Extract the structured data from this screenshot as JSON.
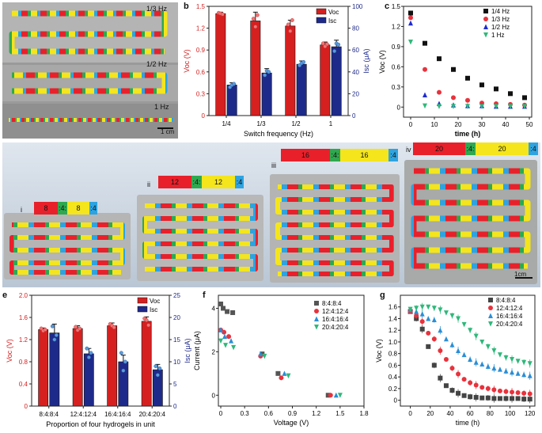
{
  "figure": {
    "panel_labels": {
      "a": "a",
      "b": "b",
      "c": "c",
      "d": "d",
      "e": "e",
      "f": "f",
      "g": "g"
    },
    "panel_a": {
      "labels": [
        "1/3 Hz",
        "1/2 Hz",
        "1 Hz"
      ],
      "scale_bar": "1 cm"
    },
    "panel_d": {
      "items": [
        {
          "roman": "i",
          "ratio": [
            "8",
            ":4:",
            "8",
            ":4"
          ]
        },
        {
          "roman": "ii",
          "ratio": [
            "12",
            ":4:",
            "12",
            ":4"
          ]
        },
        {
          "roman": "iii",
          "ratio": [
            "16",
            ":4:",
            "16",
            ":4"
          ]
        },
        {
          "roman": "iv",
          "ratio": [
            "20",
            ":4:",
            "20",
            ":4"
          ]
        }
      ],
      "scale_bar": "1cm"
    },
    "colors": {
      "red": "#e8202a",
      "green": "#2fa84f",
      "yellow": "#f4e51c",
      "blue": "#2ea3e0",
      "navy": "#1e2a8a",
      "bar_red": "#d62020"
    }
  },
  "chart_data": [
    {
      "id": "b",
      "type": "bar",
      "categories": [
        "1/4",
        "1/3",
        "1/2",
        "1"
      ],
      "series": [
        {
          "name": "Voc",
          "axis": "left",
          "values": [
            1.4,
            1.3,
            1.23,
            0.97
          ],
          "err": [
            0.02,
            0.12,
            0.08,
            0.04
          ],
          "points": [
            [
              1.41,
              1.4,
              1.39
            ],
            [
              1.33,
              1.22,
              1.38
            ],
            [
              1.25,
              1.16,
              1.31
            ],
            [
              0.99,
              0.95,
              0.98
            ]
          ]
        },
        {
          "name": "Isc",
          "axis": "right",
          "values": [
            28,
            39,
            47,
            63
          ],
          "err": [
            2,
            4,
            3,
            6
          ],
          "points": [
            [
              26,
              28,
              29
            ],
            [
              37,
              41,
              40
            ],
            [
              46,
              48,
              49
            ],
            [
              59,
              66,
              65
            ]
          ]
        }
      ],
      "xlabel": "Switch frequency (Hz)",
      "ylabel": "Voc (V)",
      "ylabel_right": "Isc (μA)",
      "ylim": [
        0,
        1.5
      ],
      "ylim_right": [
        0,
        100
      ],
      "yticks": [
        0,
        0.3,
        0.6,
        0.9,
        1.2,
        1.5
      ],
      "yticks_right": [
        0,
        20,
        40,
        60,
        80,
        100
      ],
      "legend": [
        "Voc",
        "Isc"
      ]
    },
    {
      "id": "c",
      "type": "scatter",
      "xlabel": "time (h)",
      "ylabel": "Voc (V)",
      "xlim": [
        -3,
        51
      ],
      "ylim": [
        -0.15,
        1.5
      ],
      "xticks": [
        0,
        10,
        20,
        30,
        40,
        50
      ],
      "yticks": [
        0,
        0.3,
        0.6,
        0.9,
        1.2,
        1.5
      ],
      "series": [
        {
          "name": "1/4 Hz",
          "marker": "square",
          "color": "#111111",
          "x": [
            0,
            6,
            12,
            18,
            24,
            30,
            36,
            42,
            48
          ],
          "y": [
            1.4,
            0.95,
            0.72,
            0.56,
            0.43,
            0.33,
            0.27,
            0.2,
            0.14
          ]
        },
        {
          "name": "1/3 Hz",
          "marker": "circle",
          "color": "#e8323c",
          "x": [
            0,
            6,
            12,
            18,
            24,
            30,
            36,
            42,
            48
          ],
          "y": [
            1.33,
            0.56,
            0.22,
            0.14,
            0.1,
            0.06,
            0.05,
            0.04,
            0.03
          ]
        },
        {
          "name": "1/2 Hz",
          "marker": "triangle-up",
          "color": "#1f2bd0",
          "x": [
            0,
            6,
            12,
            18,
            24,
            30,
            36,
            42,
            48
          ],
          "y": [
            1.25,
            0.18,
            0.05,
            0.03,
            0.02,
            0.02,
            0.01,
            0.01,
            0.01
          ]
        },
        {
          "name": "1 Hz",
          "marker": "triangle-down",
          "color": "#2fb87a",
          "x": [
            0,
            6,
            12,
            18,
            24,
            30,
            36,
            42,
            48
          ],
          "y": [
            0.97,
            0.02,
            0.01,
            0.01,
            0.01,
            0.01,
            0.01,
            0.01,
            0.01
          ]
        }
      ],
      "legend": [
        "1/4 Hz",
        "1/3 Hz",
        "1/2 Hz",
        "1 Hz"
      ]
    },
    {
      "id": "e",
      "type": "bar",
      "categories": [
        "8:4:8:4",
        "12:4:12:4",
        "16:4:16:4",
        "20:4:20:4"
      ],
      "series": [
        {
          "name": "Voc",
          "axis": "left",
          "values": [
            1.38,
            1.4,
            1.45,
            1.53
          ],
          "err": [
            0.03,
            0.05,
            0.05,
            0.08
          ],
          "points": [
            [
              1.4,
              1.36,
              1.38
            ],
            [
              1.43,
              1.37,
              1.4
            ],
            [
              1.48,
              1.45,
              1.42
            ],
            [
              1.58,
              1.55,
              1.46
            ]
          ]
        },
        {
          "name": "Isc",
          "axis": "right",
          "values": [
            16.5,
            11.8,
            10.0,
            8.2
          ],
          "err": [
            2.0,
            1.2,
            1.5,
            1.2
          ],
          "points": [
            [
              18,
              15,
              16
            ],
            [
              13,
              11,
              12
            ],
            [
              12,
              8,
              10
            ],
            [
              9,
              7,
              8.5
            ]
          ]
        }
      ],
      "xlabel": "Proportion of four hydrogels in unit",
      "ylabel": "Voc (V)",
      "ylabel_right": "Isc (μA)",
      "ylim": [
        0,
        2.0
      ],
      "ylim_right": [
        0,
        25
      ],
      "yticks": [
        0,
        0.4,
        0.8,
        1.2,
        1.6,
        2.0
      ],
      "yticks_right": [
        0,
        5,
        10,
        15,
        20,
        25
      ],
      "legend": [
        "Voc",
        "Isc"
      ]
    },
    {
      "id": "f",
      "type": "scatter",
      "xlabel": "Voltage (V)",
      "ylabel": "Current (μA)",
      "xlim": [
        -0.03,
        1.8
      ],
      "ylim": [
        -0.5,
        4.6
      ],
      "xticks": [
        0,
        0.3,
        0.6,
        0.9,
        1.2,
        1.5,
        1.8
      ],
      "yticks": [
        0,
        2.0,
        4.0
      ],
      "series": [
        {
          "name": "8:4:8:4",
          "marker": "square",
          "color": "#555555",
          "x": [
            0.0,
            0.03,
            0.08,
            0.15,
            0.52,
            0.72,
            1.35
          ],
          "y": [
            4.2,
            4.0,
            3.85,
            3.8,
            1.9,
            1.0,
            0.0
          ]
        },
        {
          "name": "12:4:12:4",
          "marker": "circle",
          "color": "#e8323c",
          "x": [
            0.0,
            0.04,
            0.1,
            0.5,
            0.76,
            1.38
          ],
          "y": [
            3.0,
            2.9,
            2.7,
            1.8,
            0.8,
            0.0
          ]
        },
        {
          "name": "16:4:16:4",
          "marker": "triangle-up",
          "color": "#2a8fd6",
          "x": [
            0.0,
            0.05,
            0.13,
            0.5,
            0.8,
            1.45
          ],
          "y": [
            3.0,
            2.7,
            2.5,
            1.9,
            1.0,
            0.0
          ]
        },
        {
          "name": "20:4:20:4",
          "marker": "triangle-down",
          "color": "#2fb87a",
          "x": [
            0.0,
            0.06,
            0.16,
            0.55,
            0.85,
            1.5
          ],
          "y": [
            2.5,
            2.3,
            2.2,
            1.8,
            0.9,
            0.0
          ]
        }
      ],
      "legend": [
        "8:4:8:4",
        "12:4:12:4",
        "16:4:16:4",
        "20:4:20:4"
      ]
    },
    {
      "id": "g",
      "type": "scatter",
      "xlabel": "time (h)",
      "ylabel": "Voc (V)",
      "xlim": [
        -10,
        125
      ],
      "ylim": [
        -0.1,
        1.8
      ],
      "xticks": [
        0,
        20,
        40,
        60,
        80,
        100,
        120
      ],
      "yticks": [
        0,
        0.2,
        0.4,
        0.6,
        0.8,
        1.0,
        1.2,
        1.4,
        1.6
      ],
      "series": [
        {
          "name": "8:4:8:4",
          "marker": "square",
          "color": "#444444",
          "x": [
            0,
            6,
            12,
            18,
            24,
            30,
            36,
            42,
            48,
            54,
            60,
            66,
            72,
            78,
            84,
            90,
            96,
            102,
            108,
            114,
            120
          ],
          "y": [
            1.52,
            1.4,
            1.22,
            0.92,
            0.6,
            0.38,
            0.25,
            0.17,
            0.12,
            0.08,
            0.06,
            0.05,
            0.04,
            0.04,
            0.03,
            0.03,
            0.03,
            0.03,
            0.03,
            0.02,
            0.02
          ]
        },
        {
          "name": "12:4:12:4",
          "marker": "circle",
          "color": "#e8323c",
          "x": [
            0,
            6,
            12,
            18,
            24,
            30,
            36,
            42,
            48,
            54,
            60,
            66,
            72,
            78,
            84,
            90,
            96,
            102,
            108,
            114,
            120
          ],
          "y": [
            1.52,
            1.45,
            1.35,
            1.15,
            1.05,
            0.85,
            0.7,
            0.55,
            0.45,
            0.36,
            0.3,
            0.26,
            0.22,
            0.2,
            0.18,
            0.16,
            0.15,
            0.14,
            0.13,
            0.12,
            0.11
          ]
        },
        {
          "name": "16:4:16:4",
          "marker": "triangle-up",
          "color": "#2a8fd6",
          "x": [
            0,
            6,
            12,
            18,
            24,
            30,
            36,
            42,
            48,
            54,
            60,
            66,
            72,
            78,
            84,
            90,
            96,
            102,
            108,
            114,
            120
          ],
          "y": [
            1.55,
            1.52,
            1.48,
            1.4,
            1.38,
            1.2,
            1.05,
            0.95,
            0.85,
            0.78,
            0.7,
            0.65,
            0.62,
            0.58,
            0.55,
            0.53,
            0.5,
            0.48,
            0.46,
            0.44,
            0.42
          ]
        },
        {
          "name": "20:4:20:4",
          "marker": "triangle-down",
          "color": "#2fb87a",
          "x": [
            0,
            6,
            12,
            18,
            24,
            30,
            36,
            42,
            48,
            54,
            60,
            66,
            72,
            78,
            84,
            90,
            96,
            102,
            108,
            114,
            120
          ],
          "y": [
            1.56,
            1.58,
            1.6,
            1.6,
            1.58,
            1.55,
            1.5,
            1.45,
            1.4,
            1.3,
            1.2,
            1.1,
            1.0,
            0.92,
            0.85,
            0.78,
            0.73,
            0.7,
            0.67,
            0.65,
            0.63
          ]
        }
      ],
      "legend": [
        "8:4:8:4",
        "12:4:12:4",
        "16:4:16:4",
        "20:4:20:4"
      ]
    }
  ]
}
